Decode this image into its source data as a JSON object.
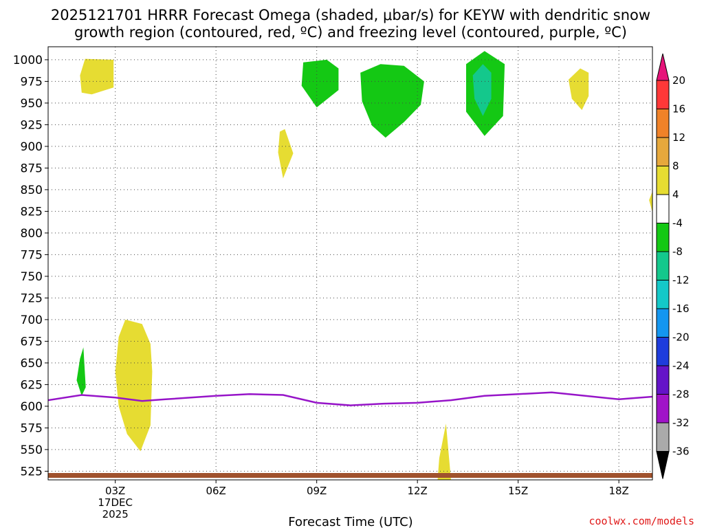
{
  "chart_data": {
    "type": "contour",
    "title_line1": "2025121701 HRRR Forecast Omega (shaded, μbar/s) for KEYW with dendritic snow",
    "title_line2": "growth region (contoured, red, ºC) and freezing level (contoured, purple, ºC)",
    "xlabel": "Forecast Time (UTC)",
    "x_range": [
      1,
      19
    ],
    "x_ticks": [
      {
        "x": 3,
        "label": "03Z",
        "sub1": "17DEC",
        "sub2": "2025"
      },
      {
        "x": 6,
        "label": "06Z",
        "sub1": "",
        "sub2": ""
      },
      {
        "x": 9,
        "label": "09Z",
        "sub1": "",
        "sub2": ""
      },
      {
        "x": 12,
        "label": "12Z",
        "sub1": "",
        "sub2": ""
      },
      {
        "x": 15,
        "label": "15Z",
        "sub1": "",
        "sub2": ""
      },
      {
        "x": 18,
        "label": "18Z",
        "sub1": "",
        "sub2": ""
      }
    ],
    "y_range": [
      1015,
      515
    ],
    "y_ticks": [
      525,
      550,
      575,
      600,
      625,
      650,
      675,
      700,
      725,
      750,
      775,
      800,
      825,
      850,
      875,
      900,
      925,
      950,
      975,
      1000
    ],
    "grid": true,
    "freezing_level": [
      {
        "x": 1.0,
        "p": 607
      },
      {
        "x": 2.0,
        "p": 613
      },
      {
        "x": 3.0,
        "p": 610
      },
      {
        "x": 3.8,
        "p": 606
      },
      {
        "x": 4.5,
        "p": 608
      },
      {
        "x": 6.0,
        "p": 612
      },
      {
        "x": 7.0,
        "p": 614
      },
      {
        "x": 8.0,
        "p": 613
      },
      {
        "x": 9.0,
        "p": 604
      },
      {
        "x": 10.0,
        "p": 601
      },
      {
        "x": 11.0,
        "p": 603
      },
      {
        "x": 12.0,
        "p": 604
      },
      {
        "x": 13.0,
        "p": 607
      },
      {
        "x": 14.0,
        "p": 612
      },
      {
        "x": 15.0,
        "p": 614
      },
      {
        "x": 16.0,
        "p": 616
      },
      {
        "x": 17.0,
        "p": 612
      },
      {
        "x": 18.0,
        "p": 608
      },
      {
        "x": 19.0,
        "p": 611
      }
    ],
    "omega_regions": [
      {
        "level": "4",
        "color": "#e6dc32",
        "points": [
          [
            3.3,
            700
          ],
          [
            3.1,
            680
          ],
          [
            3.0,
            640
          ],
          [
            3.1,
            600
          ],
          [
            3.35,
            568
          ],
          [
            3.75,
            548
          ],
          [
            4.05,
            578
          ],
          [
            4.1,
            640
          ],
          [
            4.05,
            672
          ],
          [
            3.8,
            695
          ]
        ]
      },
      {
        "level": "4",
        "color": "#e6dc32",
        "points": [
          [
            12.6,
            515
          ],
          [
            13.0,
            515
          ],
          [
            12.85,
            580
          ],
          [
            12.65,
            540
          ]
        ]
      },
      {
        "level": "4",
        "color": "#e6dc32",
        "points": [
          [
            2.0,
            962
          ],
          [
            2.3,
            960
          ],
          [
            2.95,
            968
          ],
          [
            2.95,
            1000
          ],
          [
            2.1,
            1001
          ],
          [
            1.95,
            982
          ]
        ]
      },
      {
        "level": "4",
        "color": "#e6dc32",
        "points": [
          [
            8.0,
            863
          ],
          [
            8.3,
            892
          ],
          [
            8.05,
            920
          ],
          [
            7.9,
            917
          ],
          [
            7.85,
            893
          ]
        ]
      },
      {
        "level": "4",
        "color": "#e6dc32",
        "points": [
          [
            16.9,
            942
          ],
          [
            17.1,
            958
          ],
          [
            17.1,
            985
          ],
          [
            16.85,
            990
          ],
          [
            16.5,
            977
          ],
          [
            16.6,
            955
          ]
        ]
      },
      {
        "level": "4",
        "color": "#e6dc32",
        "points": [
          [
            19.0,
            824
          ],
          [
            18.9,
            838
          ],
          [
            19.0,
            848
          ]
        ]
      },
      {
        "level": "-8",
        "color": "#14c814",
        "points": [
          [
            2.0,
            612
          ],
          [
            2.12,
            622
          ],
          [
            2.05,
            668
          ],
          [
            1.95,
            655
          ],
          [
            1.85,
            630
          ]
        ]
      },
      {
        "level": "-8",
        "color": "#14c814",
        "points": [
          [
            9.0,
            945
          ],
          [
            9.65,
            965
          ],
          [
            9.65,
            990
          ],
          [
            9.3,
            1000
          ],
          [
            8.6,
            997
          ],
          [
            8.55,
            970
          ]
        ]
      },
      {
        "level": "-8",
        "color": "#14c814",
        "points": [
          [
            11.05,
            910
          ],
          [
            11.6,
            928
          ],
          [
            12.1,
            948
          ],
          [
            12.2,
            975
          ],
          [
            11.6,
            993
          ],
          [
            10.9,
            995
          ],
          [
            10.3,
            985
          ],
          [
            10.35,
            952
          ],
          [
            10.65,
            924
          ]
        ]
      },
      {
        "level": "-8",
        "color": "#14c814",
        "points": [
          [
            14.0,
            912
          ],
          [
            14.55,
            935
          ],
          [
            14.6,
            995
          ],
          [
            14.0,
            1010
          ],
          [
            13.45,
            995
          ],
          [
            13.45,
            940
          ]
        ]
      },
      {
        "level": "-12",
        "color": "#14c88c",
        "points": [
          [
            13.95,
            935
          ],
          [
            14.2,
            955
          ],
          [
            14.2,
            985
          ],
          [
            13.95,
            995
          ],
          [
            13.65,
            982
          ],
          [
            13.7,
            955
          ]
        ]
      }
    ],
    "colorbar": {
      "segments": [
        {
          "color": "#ff3838"
        },
        {
          "color": "#f08228"
        },
        {
          "color": "#e6a83c"
        },
        {
          "color": "#e6dc32"
        },
        {
          "color": "#ffffff"
        },
        {
          "color": "#14c814"
        },
        {
          "color": "#14c88c"
        },
        {
          "color": "#14c8c8"
        },
        {
          "color": "#1496f0"
        },
        {
          "color": "#1e3cdc"
        },
        {
          "color": "#6414c8"
        },
        {
          "color": "#a014c8"
        },
        {
          "color": "#aaaaaa"
        }
      ],
      "top_arrow_color": "#e6147a",
      "bottom_arrow_color": "#000000",
      "labels": [
        "20",
        "16",
        "12",
        "8",
        "4",
        "-4",
        "-8",
        "-12",
        "-16",
        "-20",
        "-24",
        "-28",
        "-32",
        "-36"
      ]
    },
    "colors": {
      "freezing_level": "#9614c8",
      "ground": "#a0522d",
      "grid": "#444444"
    }
  },
  "watermark": "coolwx.com/models"
}
